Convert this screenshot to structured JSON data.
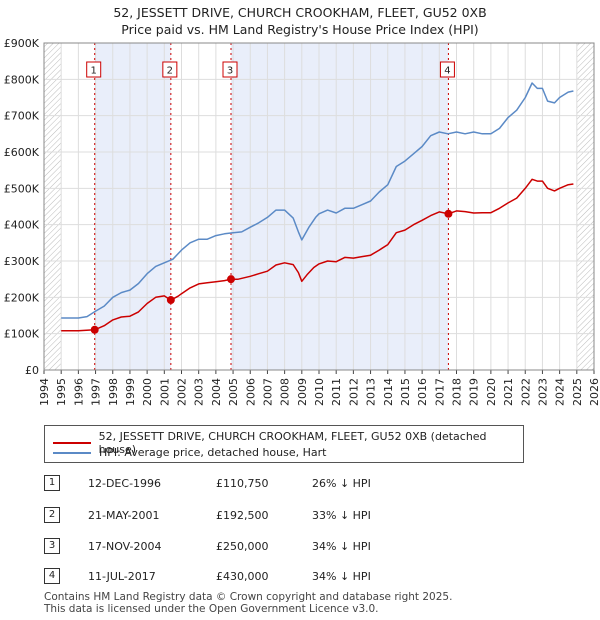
{
  "title_line1": "52, JESSETT DRIVE, CHURCH CROOKHAM, FLEET, GU52 0XB",
  "title_line2": "Price paid vs. HM Land Registry's House Price Index (HPI)",
  "chart_data": {
    "type": "line",
    "title": "52, JESSETT DRIVE, CHURCH CROOKHAM, FLEET, GU52 0XB — Price paid vs. HM Land Registry's House Price Index (HPI)",
    "xlim": [
      1994,
      2026
    ],
    "ylim": [
      0,
      900000
    ],
    "x_ticks": [
      "1994",
      "1995",
      "1996",
      "1997",
      "1998",
      "1999",
      "2000",
      "2001",
      "2002",
      "2003",
      "2004",
      "2005",
      "2006",
      "2007",
      "2008",
      "2009",
      "2010",
      "2011",
      "2012",
      "2013",
      "2014",
      "2015",
      "2016",
      "2017",
      "2018",
      "2019",
      "2020",
      "2021",
      "2022",
      "2023",
      "2024",
      "2025",
      "2026"
    ],
    "y_ticks": [
      {
        "value": 0,
        "label": "£0"
      },
      {
        "value": 100000,
        "label": "£100K"
      },
      {
        "value": 200000,
        "label": "£200K"
      },
      {
        "value": 300000,
        "label": "£300K"
      },
      {
        "value": 400000,
        "label": "£400K"
      },
      {
        "value": 500000,
        "label": "£500K"
      },
      {
        "value": 600000,
        "label": "£600K"
      },
      {
        "value": 700000,
        "label": "£700K"
      },
      {
        "value": 800000,
        "label": "£800K"
      },
      {
        "value": 900000,
        "label": "£900K"
      }
    ],
    "shaded_ranges": [
      [
        1996.95,
        2001.38
      ],
      [
        2004.88,
        2017.53
      ]
    ],
    "hatched_ranges": [
      [
        1994,
        1995
      ],
      [
        2025,
        2026
      ]
    ],
    "series": [
      {
        "name": "52, JESSETT DRIVE, CHURCH CROOKHAM, FLEET, GU52 0XB (detached house)",
        "color": "#cc0000",
        "points": [
          [
            1995,
            108000
          ],
          [
            1996,
            108000
          ],
          [
            1996.95,
            110750
          ],
          [
            1997.5,
            122000
          ],
          [
            1998,
            138000
          ],
          [
            1998.5,
            146000
          ],
          [
            1999,
            148000
          ],
          [
            1999.5,
            160000
          ],
          [
            2000,
            183000
          ],
          [
            2000.5,
            200000
          ],
          [
            2001,
            204000
          ],
          [
            2001.38,
            192500
          ],
          [
            2001.8,
            203000
          ],
          [
            2002,
            210000
          ],
          [
            2002.5,
            226000
          ],
          [
            2003,
            237000
          ],
          [
            2003.5,
            240000
          ],
          [
            2004,
            243000
          ],
          [
            2004.5,
            246000
          ],
          [
            2004.88,
            250000
          ],
          [
            2005.3,
            250000
          ],
          [
            2006,
            258000
          ],
          [
            2006.5,
            265000
          ],
          [
            2007,
            272000
          ],
          [
            2007.5,
            289000
          ],
          [
            2008,
            295000
          ],
          [
            2008.5,
            290000
          ],
          [
            2008.8,
            268000
          ],
          [
            2009,
            244000
          ],
          [
            2009.3,
            262000
          ],
          [
            2009.7,
            282000
          ],
          [
            2010,
            292000
          ],
          [
            2010.5,
            300000
          ],
          [
            2011,
            298000
          ],
          [
            2011.5,
            310000
          ],
          [
            2012,
            308000
          ],
          [
            2012.5,
            312000
          ],
          [
            2013,
            316000
          ],
          [
            2013.5,
            330000
          ],
          [
            2014,
            345000
          ],
          [
            2014.5,
            378000
          ],
          [
            2015,
            385000
          ],
          [
            2015.5,
            400000
          ],
          [
            2016,
            412000
          ],
          [
            2016.5,
            425000
          ],
          [
            2017,
            435000
          ],
          [
            2017.53,
            430000
          ],
          [
            2018,
            438000
          ],
          [
            2018.5,
            436000
          ],
          [
            2019,
            432000
          ],
          [
            2019.5,
            433000
          ],
          [
            2020,
            433000
          ],
          [
            2020.5,
            445000
          ],
          [
            2021,
            460000
          ],
          [
            2021.5,
            473000
          ],
          [
            2022,
            500000
          ],
          [
            2022.4,
            525000
          ],
          [
            2022.7,
            520000
          ],
          [
            2023,
            520000
          ],
          [
            2023.3,
            500000
          ],
          [
            2023.7,
            493000
          ],
          [
            2024,
            500000
          ],
          [
            2024.5,
            510000
          ],
          [
            2024.8,
            512000
          ]
        ]
      },
      {
        "name": "HPI: Average price, detached house, Hart",
        "color": "#5b8ac6",
        "points": [
          [
            1995,
            143000
          ],
          [
            1996,
            143000
          ],
          [
            1996.5,
            147000
          ],
          [
            1997,
            162000
          ],
          [
            1997.5,
            176000
          ],
          [
            1998,
            200000
          ],
          [
            1998.5,
            213000
          ],
          [
            1999,
            220000
          ],
          [
            1999.5,
            238000
          ],
          [
            2000,
            265000
          ],
          [
            2000.5,
            285000
          ],
          [
            2001,
            295000
          ],
          [
            2001.5,
            305000
          ],
          [
            2002,
            330000
          ],
          [
            2002.5,
            350000
          ],
          [
            2003,
            360000
          ],
          [
            2003.5,
            360000
          ],
          [
            2004,
            370000
          ],
          [
            2004.5,
            375000
          ],
          [
            2005,
            378000
          ],
          [
            2005.5,
            380000
          ],
          [
            2006,
            393000
          ],
          [
            2006.5,
            405000
          ],
          [
            2007,
            420000
          ],
          [
            2007.5,
            440000
          ],
          [
            2008,
            440000
          ],
          [
            2008.5,
            418000
          ],
          [
            2008.8,
            380000
          ],
          [
            2009,
            358000
          ],
          [
            2009.4,
            392000
          ],
          [
            2009.8,
            420000
          ],
          [
            2010,
            430000
          ],
          [
            2010.5,
            440000
          ],
          [
            2011,
            432000
          ],
          [
            2011.5,
            445000
          ],
          [
            2012,
            445000
          ],
          [
            2012.5,
            455000
          ],
          [
            2013,
            465000
          ],
          [
            2013.5,
            490000
          ],
          [
            2014,
            510000
          ],
          [
            2014.5,
            560000
          ],
          [
            2015,
            575000
          ],
          [
            2015.5,
            595000
          ],
          [
            2016,
            615000
          ],
          [
            2016.5,
            645000
          ],
          [
            2017,
            655000
          ],
          [
            2017.5,
            650000
          ],
          [
            2018,
            655000
          ],
          [
            2018.5,
            650000
          ],
          [
            2019,
            655000
          ],
          [
            2019.5,
            650000
          ],
          [
            2020,
            650000
          ],
          [
            2020.5,
            665000
          ],
          [
            2021,
            695000
          ],
          [
            2021.5,
            715000
          ],
          [
            2022,
            750000
          ],
          [
            2022.4,
            790000
          ],
          [
            2022.7,
            775000
          ],
          [
            2023,
            775000
          ],
          [
            2023.3,
            740000
          ],
          [
            2023.7,
            735000
          ],
          [
            2024,
            750000
          ],
          [
            2024.5,
            765000
          ],
          [
            2024.8,
            768000
          ]
        ]
      }
    ],
    "markers": [
      {
        "label": "1",
        "x": 1996.95,
        "y": 110750
      },
      {
        "label": "2",
        "x": 2001.38,
        "y": 192500
      },
      {
        "label": "3",
        "x": 2004.88,
        "y": 250000
      },
      {
        "label": "4",
        "x": 2017.53,
        "y": 430000
      }
    ]
  },
  "legend": {
    "property_label": "52, JESSETT DRIVE, CHURCH CROOKHAM, FLEET, GU52 0XB (detached house)",
    "hpi_label": "HPI: Average price, detached house, Hart",
    "property_color": "#cc0000",
    "hpi_color": "#5b8ac6"
  },
  "transactions": [
    {
      "num": "1",
      "date": "12-DEC-1996",
      "price": "£110,750",
      "hpi": "26% ↓ HPI"
    },
    {
      "num": "2",
      "date": "21-MAY-2001",
      "price": "£192,500",
      "hpi": "33% ↓ HPI"
    },
    {
      "num": "3",
      "date": "17-NOV-2004",
      "price": "£250,000",
      "hpi": "34% ↓ HPI"
    },
    {
      "num": "4",
      "date": "11-JUL-2017",
      "price": "£430,000",
      "hpi": "34% ↓ HPI"
    }
  ],
  "footer": {
    "line1": "Contains HM Land Registry data © Crown copyright and database right 2025.",
    "line2": "This data is licensed under the Open Government Licence v3.0."
  }
}
